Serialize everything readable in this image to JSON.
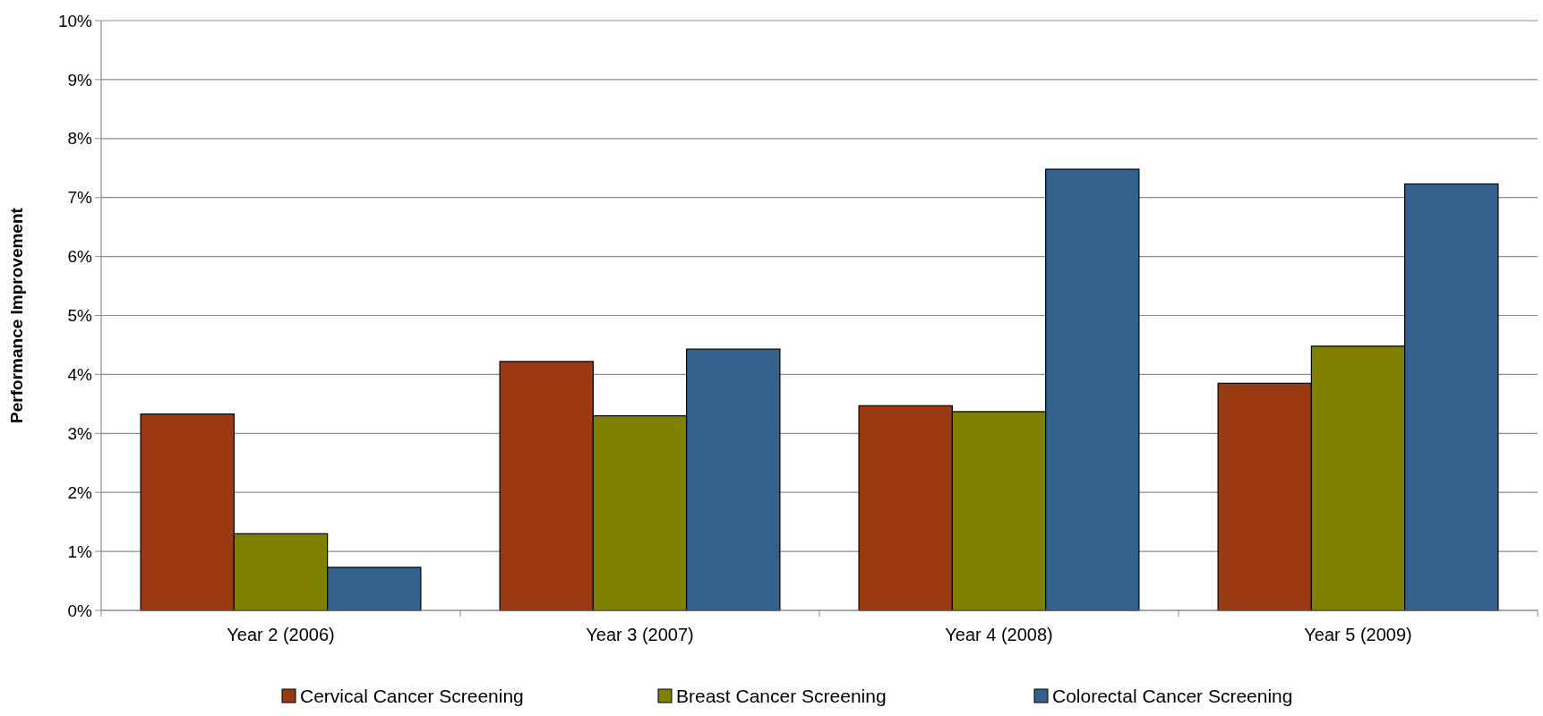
{
  "chart_data": {
    "type": "bar",
    "ylabel": "Performance Improvement",
    "categories": [
      "Year 2 (2006)",
      "Year 3 (2007)",
      "Year 4 (2008)",
      "Year 5 (2009)"
    ],
    "series": [
      {
        "name": "Cervical Cancer Screening",
        "color": "#9a3a14",
        "values": [
          3.33,
          4.22,
          3.47,
          3.85
        ]
      },
      {
        "name": "Breast Cancer Screening",
        "color": "#808000",
        "values": [
          1.3,
          3.3,
          3.37,
          4.48
        ]
      },
      {
        "name": "Colorectal Cancer Screening",
        "color": "#34618b",
        "values": [
          0.73,
          4.43,
          7.48,
          7.23
        ]
      }
    ],
    "ylim": [
      0,
      10
    ],
    "yticks": [
      {
        "value": 0,
        "label": "0%"
      },
      {
        "value": 1,
        "label": "1%"
      },
      {
        "value": 2,
        "label": "2%"
      },
      {
        "value": 3,
        "label": "3%"
      },
      {
        "value": 4,
        "label": "4%"
      },
      {
        "value": 5,
        "label": "5%"
      },
      {
        "value": 6,
        "label": "6%"
      },
      {
        "value": 7,
        "label": "7%"
      },
      {
        "value": 8,
        "label": "8%"
      },
      {
        "value": 9,
        "label": "9%"
      },
      {
        "value": 10,
        "label": "10%"
      }
    ],
    "grid": "y",
    "legend": "bottom"
  }
}
